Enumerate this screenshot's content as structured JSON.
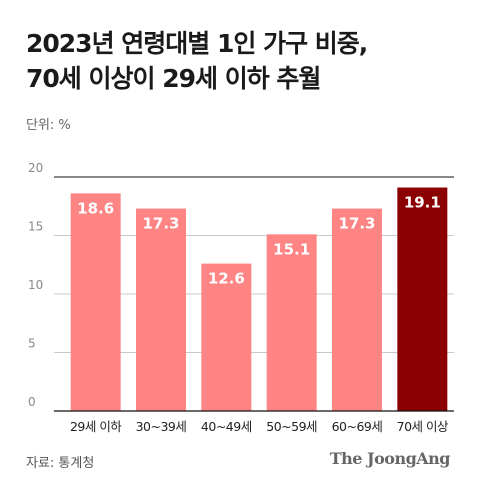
{
  "title_lines": [
    "2023년 연령대별 1인 가구 비중,",
    "70세 이상이 29세 이하 추월"
  ],
  "unit_label": "단위: %",
  "source": "자료: 통계청",
  "brand": "The JoongAng",
  "colors": {
    "bar": "#ff8484",
    "highlight": "#8b0000",
    "grid": "#c8c8c8",
    "axis": "#111111"
  },
  "chart_data": {
    "type": "bar",
    "categories": [
      "29세 이하",
      "30~39세",
      "40~49세",
      "50~59세",
      "60~69세",
      "70세 이상"
    ],
    "values": [
      18.6,
      17.3,
      12.6,
      15.1,
      17.3,
      19.1
    ],
    "value_labels": [
      "18.6",
      "17.3",
      "12.6",
      "15.1",
      "17.3",
      "19.1"
    ],
    "highlight_index": 5,
    "ylim": [
      0,
      20
    ],
    "yticks": [
      0,
      5,
      10,
      15,
      20
    ],
    "grid": true
  }
}
